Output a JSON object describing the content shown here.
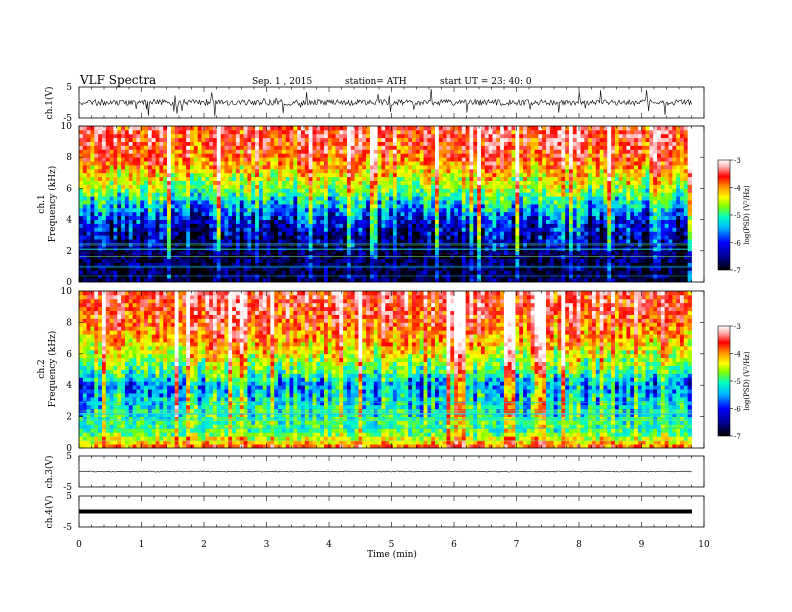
{
  "header": {
    "title": "VLF Spectra",
    "date": "Sep. 1 , 2015",
    "station": "station= ATH",
    "start": "start  UT =   23: 40: 0"
  },
  "chart_data": [
    {
      "type": "line",
      "panel": "ch1-waveform",
      "ylabel": "ch.1(V)",
      "ylim": [
        -5,
        5
      ],
      "yticks": [
        "5",
        "-5"
      ],
      "x": [
        0,
        1,
        2,
        3,
        4,
        5,
        6,
        7,
        8,
        9,
        9.8
      ],
      "series": [
        {
          "values": [
            0,
            0,
            0,
            0,
            0,
            0,
            0,
            0,
            0,
            0,
            0
          ]
        }
      ]
    },
    {
      "type": "heatmap",
      "panel": "ch1-spectrogram",
      "ylabel": "ch.1\nFrequency  (kHz)",
      "ylim": [
        0,
        10
      ],
      "yticks": [
        "0",
        "2",
        "4",
        "6",
        "8",
        "10"
      ],
      "xlim": [
        0,
        9.8
      ],
      "colorbar": {
        "label": "log(PSD) (V²/Hz)",
        "range": [
          -7,
          -3
        ],
        "ticks": [
          "-3",
          "-4",
          "-5",
          "-6",
          "-7"
        ]
      },
      "approx_psd_profile": {
        "freq_khz": [
          0,
          1,
          2,
          3,
          4,
          5,
          6,
          7,
          8,
          9,
          10
        ],
        "log_psd": [
          -6.8,
          -6.8,
          -6.7,
          -6.5,
          -6.2,
          -5.6,
          -5.0,
          -4.5,
          -4.0,
          -3.8,
          -3.7
        ]
      }
    },
    {
      "type": "heatmap",
      "panel": "ch2-spectrogram",
      "ylabel": "ch.2\nFrequency  (kHz)",
      "ylim": [
        0,
        10
      ],
      "yticks": [
        "0",
        "2",
        "4",
        "6",
        "8",
        "10"
      ],
      "xlim": [
        0,
        9.8
      ],
      "colorbar": {
        "label": "log(PSD) (V²/Hz)",
        "range": [
          -7,
          -3
        ],
        "ticks": [
          "-3",
          "-4",
          "-5",
          "-6",
          "-7"
        ]
      },
      "approx_psd_profile": {
        "freq_khz": [
          0,
          1,
          2,
          3,
          4,
          5,
          6,
          7,
          8,
          9,
          10
        ],
        "log_psd": [
          -4.0,
          -5.2,
          -5.3,
          -5.5,
          -5.8,
          -5.1,
          -4.6,
          -4.2,
          -3.9,
          -3.7,
          -3.6
        ]
      }
    },
    {
      "type": "line",
      "panel": "ch3-waveform",
      "ylabel": "ch.3(V)",
      "ylim": [
        -5,
        5
      ],
      "yticks": [
        "5",
        "-5"
      ],
      "x": [
        0,
        9.8
      ],
      "series": [
        {
          "values": [
            0,
            0
          ]
        }
      ]
    },
    {
      "type": "line",
      "panel": "ch4-waveform",
      "ylabel": "ch.4(V)",
      "ylim": [
        -5,
        5
      ],
      "yticks": [
        "5",
        "-5"
      ],
      "x": [
        0,
        9.8
      ],
      "series": [
        {
          "values": [
            0,
            0
          ]
        }
      ]
    }
  ],
  "xaxis": {
    "label": "Time  (min)",
    "xlim": [
      0,
      10
    ],
    "ticks": [
      "0",
      "1",
      "2",
      "3",
      "4",
      "5",
      "6",
      "7",
      "8",
      "9",
      "10"
    ]
  },
  "colors": {
    "colormap": [
      "#000000",
      "#00007a",
      "#0000ff",
      "#00b4ff",
      "#00ffc8",
      "#7fff00",
      "#ffff00",
      "#ff8c00",
      "#ff0000",
      "#ffb4b4",
      "#ffffff"
    ]
  }
}
